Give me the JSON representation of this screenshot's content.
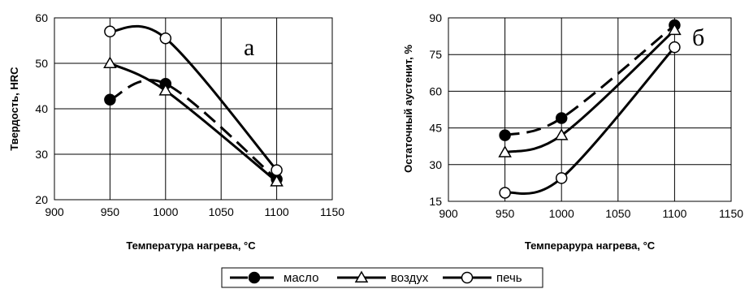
{
  "chart_data": [
    {
      "type": "line",
      "panel_label": "а",
      "xlabel": "Температура нагрева, °С",
      "ylabel": "Твердость, HRC",
      "xlim": [
        900,
        1150
      ],
      "ylim": [
        20,
        60
      ],
      "xticks": [
        900,
        950,
        1000,
        1050,
        1100,
        1150
      ],
      "yticks": [
        20,
        30,
        40,
        50,
        60
      ],
      "grid": true,
      "series": [
        {
          "name": "масло",
          "x": [
            950,
            1000,
            1100
          ],
          "values": [
            42,
            45.5,
            24.5
          ],
          "marker": "filled-circle",
          "line": "dashed"
        },
        {
          "name": "воздух",
          "x": [
            950,
            1000,
            1100
          ],
          "values": [
            50,
            44,
            24
          ],
          "marker": "triangle",
          "line": "solid"
        },
        {
          "name": "печь",
          "x": [
            950,
            1000,
            1100
          ],
          "values": [
            57,
            55.5,
            26.5
          ],
          "marker": "open-circle",
          "line": "solid"
        }
      ]
    },
    {
      "type": "line",
      "panel_label": "б",
      "xlabel": "Темперарура нагрева, °С",
      "ylabel": "Остаточный аустенит, %",
      "xlim": [
        900,
        1150
      ],
      "ylim": [
        15,
        90
      ],
      "xticks": [
        900,
        950,
        1000,
        1050,
        1100,
        1150
      ],
      "yticks": [
        15,
        30,
        45,
        60,
        75,
        90
      ],
      "grid": true,
      "series": [
        {
          "name": "масло",
          "x": [
            950,
            1000,
            1100
          ],
          "values": [
            42,
            49,
            87
          ],
          "marker": "filled-circle",
          "line": "dashed"
        },
        {
          "name": "воздух",
          "x": [
            950,
            1000,
            1100
          ],
          "values": [
            35,
            42,
            85
          ],
          "marker": "triangle",
          "line": "solid"
        },
        {
          "name": "печь",
          "x": [
            950,
            1000,
            1100
          ],
          "values": [
            18.5,
            24.5,
            78
          ],
          "marker": "open-circle",
          "line": "solid"
        }
      ]
    }
  ],
  "legend": {
    "placement": "bottom-center",
    "items": [
      {
        "label": "масло",
        "marker": "filled-circle",
        "line": "dashed"
      },
      {
        "label": "воздух",
        "marker": "triangle",
        "line": "solid"
      },
      {
        "label": "печь",
        "marker": "open-circle",
        "line": "solid"
      }
    ]
  }
}
